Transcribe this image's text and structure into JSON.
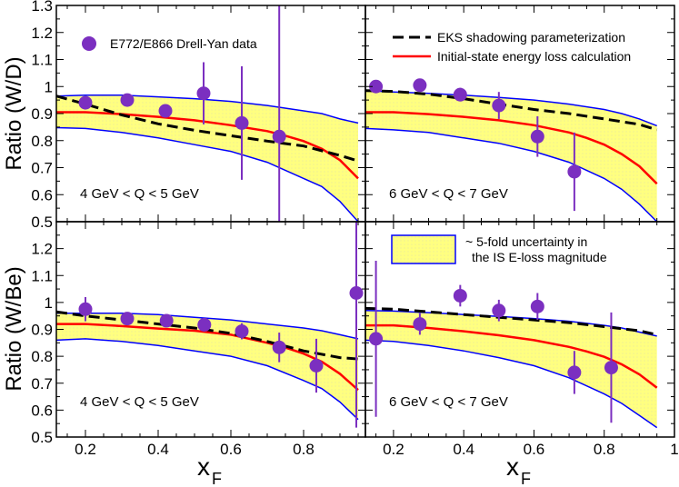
{
  "colors": {
    "band_fill": "#ffff80",
    "band_edge": "#0000ff",
    "calc": "#ff0000",
    "eks": "#000000",
    "data": "#7b2fc0"
  },
  "chart_data": {
    "type": "scatter",
    "xlabel_main": "x",
    "xlabel_sub": "F",
    "x_ticks_left": [
      "0.2",
      "0.4",
      "0.6",
      "0.8"
    ],
    "x_ticks_right": [
      "0.2",
      "0.4",
      "0.6",
      "0.8",
      "1"
    ],
    "y_ticks_top": [
      "0.5",
      "0.6",
      "0.7",
      "0.8",
      "0.9",
      "1",
      "1.1",
      "1.2",
      "1.3"
    ],
    "y_ticks_bottom": [
      "0.5",
      "0.6",
      "0.7",
      "0.8",
      "0.9",
      "1",
      "1.1",
      "1.2"
    ],
    "legend": {
      "data": "E772/E866  Drell-Yan data",
      "eks": "EKS shadowing parameterization",
      "calc": "Initial-state energy loss calculation",
      "band_line1": "~ 5-fold uncertainty in",
      "band_line2": "the IS E-loss magnitude"
    },
    "panels": [
      {
        "ylabel": "Ratio (W/D)",
        "annotation": "4 GeV < Q < 5 GeV",
        "xlim": [
          0.12,
          0.97
        ],
        "ylim": [
          0.5,
          1.3
        ],
        "band_x": [
          0.12,
          0.2,
          0.3,
          0.4,
          0.5,
          0.6,
          0.7,
          0.8,
          0.85,
          0.9,
          0.95
        ],
        "band_upper": [
          0.965,
          0.968,
          0.968,
          0.962,
          0.955,
          0.945,
          0.93,
          0.91,
          0.9,
          0.88,
          0.865
        ],
        "band_lower": [
          0.848,
          0.845,
          0.83,
          0.81,
          0.785,
          0.76,
          0.72,
          0.66,
          0.63,
          0.575,
          0.5
        ],
        "calc_x": [
          0.12,
          0.2,
          0.3,
          0.4,
          0.5,
          0.6,
          0.7,
          0.75,
          0.8,
          0.85,
          0.9,
          0.95
        ],
        "calc_y": [
          0.905,
          0.905,
          0.898,
          0.888,
          0.875,
          0.857,
          0.835,
          0.818,
          0.798,
          0.77,
          0.728,
          0.66
        ],
        "eks_x": [
          0.12,
          0.2,
          0.3,
          0.4,
          0.5,
          0.6,
          0.7,
          0.8,
          0.9,
          0.95
        ],
        "eks_y": [
          0.965,
          0.935,
          0.895,
          0.862,
          0.838,
          0.818,
          0.798,
          0.78,
          0.745,
          0.725
        ],
        "points": [
          {
            "x": 0.2,
            "y": 0.94,
            "err": 0.02
          },
          {
            "x": 0.315,
            "y": 0.95,
            "err": 0.02
          },
          {
            "x": 0.42,
            "y": 0.91,
            "err": 0.02
          },
          {
            "x": 0.525,
            "y": 0.975,
            "err": 0.115
          },
          {
            "x": 0.63,
            "y": 0.865,
            "err": 0.21
          },
          {
            "x": 0.733,
            "y": 0.815,
            "err": 0.58
          }
        ]
      },
      {
        "ylabel": "",
        "annotation": "6 GeV < Q < 7 GeV",
        "xlim": [
          0.12,
          1.0
        ],
        "ylim": [
          0.5,
          1.3
        ],
        "band_x": [
          0.12,
          0.2,
          0.3,
          0.4,
          0.5,
          0.6,
          0.7,
          0.8,
          0.85,
          0.9,
          0.95
        ],
        "band_upper": [
          0.985,
          0.98,
          0.975,
          0.968,
          0.96,
          0.95,
          0.935,
          0.915,
          0.9,
          0.88,
          0.855
        ],
        "band_lower": [
          0.845,
          0.84,
          0.83,
          0.81,
          0.79,
          0.76,
          0.72,
          0.66,
          0.62,
          0.565,
          0.5
        ],
        "calc_x": [
          0.12,
          0.2,
          0.3,
          0.4,
          0.5,
          0.6,
          0.7,
          0.75,
          0.8,
          0.85,
          0.9,
          0.95
        ],
        "calc_y": [
          0.905,
          0.905,
          0.898,
          0.888,
          0.875,
          0.857,
          0.83,
          0.81,
          0.785,
          0.75,
          0.705,
          0.64
        ],
        "eks_x": [
          0.12,
          0.2,
          0.3,
          0.4,
          0.5,
          0.6,
          0.7,
          0.8,
          0.9,
          0.95
        ],
        "eks_y": [
          0.985,
          0.982,
          0.972,
          0.955,
          0.935,
          0.915,
          0.9,
          0.88,
          0.86,
          0.84
        ],
        "points": [
          {
            "x": 0.15,
            "y": 1.0,
            "err": 0.015
          },
          {
            "x": 0.275,
            "y": 1.005,
            "err": 0.015
          },
          {
            "x": 0.39,
            "y": 0.97,
            "err": 0.025
          },
          {
            "x": 0.5,
            "y": 0.93,
            "err": 0.05
          },
          {
            "x": 0.61,
            "y": 0.815,
            "err": 0.075
          },
          {
            "x": 0.715,
            "y": 0.685,
            "err": 0.145
          }
        ]
      },
      {
        "ylabel": "Ratio (W/Be)",
        "annotation": "4 GeV < Q < 5 GeV",
        "xlim": [
          0.12,
          0.97
        ],
        "ylim": [
          0.5,
          1.3
        ],
        "band_x": [
          0.12,
          0.2,
          0.3,
          0.4,
          0.5,
          0.6,
          0.7,
          0.8,
          0.85,
          0.9,
          0.95
        ],
        "band_upper": [
          0.96,
          0.96,
          0.96,
          0.955,
          0.945,
          0.935,
          0.92,
          0.905,
          0.895,
          0.88,
          0.865
        ],
        "band_lower": [
          0.86,
          0.865,
          0.855,
          0.84,
          0.82,
          0.8,
          0.765,
          0.71,
          0.68,
          0.63,
          0.565
        ],
        "calc_x": [
          0.12,
          0.2,
          0.3,
          0.4,
          0.5,
          0.6,
          0.7,
          0.75,
          0.8,
          0.85,
          0.9,
          0.95
        ],
        "calc_y": [
          0.92,
          0.92,
          0.912,
          0.903,
          0.895,
          0.88,
          0.85,
          0.832,
          0.81,
          0.78,
          0.735,
          0.675
        ],
        "eks_x": [
          0.12,
          0.2,
          0.3,
          0.4,
          0.5,
          0.6,
          0.7,
          0.8,
          0.9,
          0.95
        ],
        "eks_y": [
          0.965,
          0.95,
          0.935,
          0.92,
          0.905,
          0.885,
          0.855,
          0.82,
          0.795,
          0.79
        ],
        "points": [
          {
            "x": 0.2,
            "y": 0.975,
            "err": 0.045
          },
          {
            "x": 0.315,
            "y": 0.94,
            "err": 0.02
          },
          {
            "x": 0.423,
            "y": 0.932,
            "err": 0.015
          },
          {
            "x": 0.527,
            "y": 0.917,
            "err": 0.015
          },
          {
            "x": 0.63,
            "y": 0.893,
            "err": 0.03
          },
          {
            "x": 0.733,
            "y": 0.833,
            "err": 0.055
          },
          {
            "x": 0.835,
            "y": 0.765,
            "err": 0.1
          },
          {
            "x": 0.945,
            "y": 1.035,
            "err": 0.5
          }
        ]
      },
      {
        "ylabel": "",
        "annotation": "6 GeV < Q < 7 GeV",
        "xlim": [
          0.12,
          1.0
        ],
        "ylim": [
          0.5,
          1.3
        ],
        "band_x": [
          0.12,
          0.2,
          0.3,
          0.4,
          0.5,
          0.6,
          0.7,
          0.8,
          0.85,
          0.9,
          0.95
        ],
        "band_upper": [
          0.97,
          0.968,
          0.962,
          0.955,
          0.948,
          0.94,
          0.93,
          0.915,
          0.905,
          0.89,
          0.875
        ],
        "band_lower": [
          0.86,
          0.855,
          0.84,
          0.82,
          0.795,
          0.765,
          0.72,
          0.66,
          0.625,
          0.58,
          0.535
        ],
        "calc_x": [
          0.12,
          0.2,
          0.3,
          0.4,
          0.5,
          0.6,
          0.7,
          0.75,
          0.8,
          0.85,
          0.9,
          0.95
        ],
        "calc_y": [
          0.915,
          0.915,
          0.905,
          0.893,
          0.878,
          0.86,
          0.835,
          0.818,
          0.798,
          0.77,
          0.733,
          0.683
        ],
        "eks_x": [
          0.12,
          0.2,
          0.3,
          0.4,
          0.5,
          0.6,
          0.7,
          0.8,
          0.9,
          0.95
        ],
        "eks_y": [
          0.978,
          0.975,
          0.965,
          0.955,
          0.945,
          0.935,
          0.925,
          0.91,
          0.895,
          0.88
        ],
        "points": [
          {
            "x": 0.15,
            "y": 0.865,
            "err": 0.29
          },
          {
            "x": 0.275,
            "y": 0.92,
            "err": 0.04
          },
          {
            "x": 0.39,
            "y": 1.025,
            "err": 0.04
          },
          {
            "x": 0.5,
            "y": 0.97,
            "err": 0.04
          },
          {
            "x": 0.61,
            "y": 0.985,
            "err": 0.05
          },
          {
            "x": 0.715,
            "y": 0.74,
            "err": 0.08
          },
          {
            "x": 0.82,
            "y": 0.758,
            "err": 0.205
          }
        ]
      }
    ]
  }
}
